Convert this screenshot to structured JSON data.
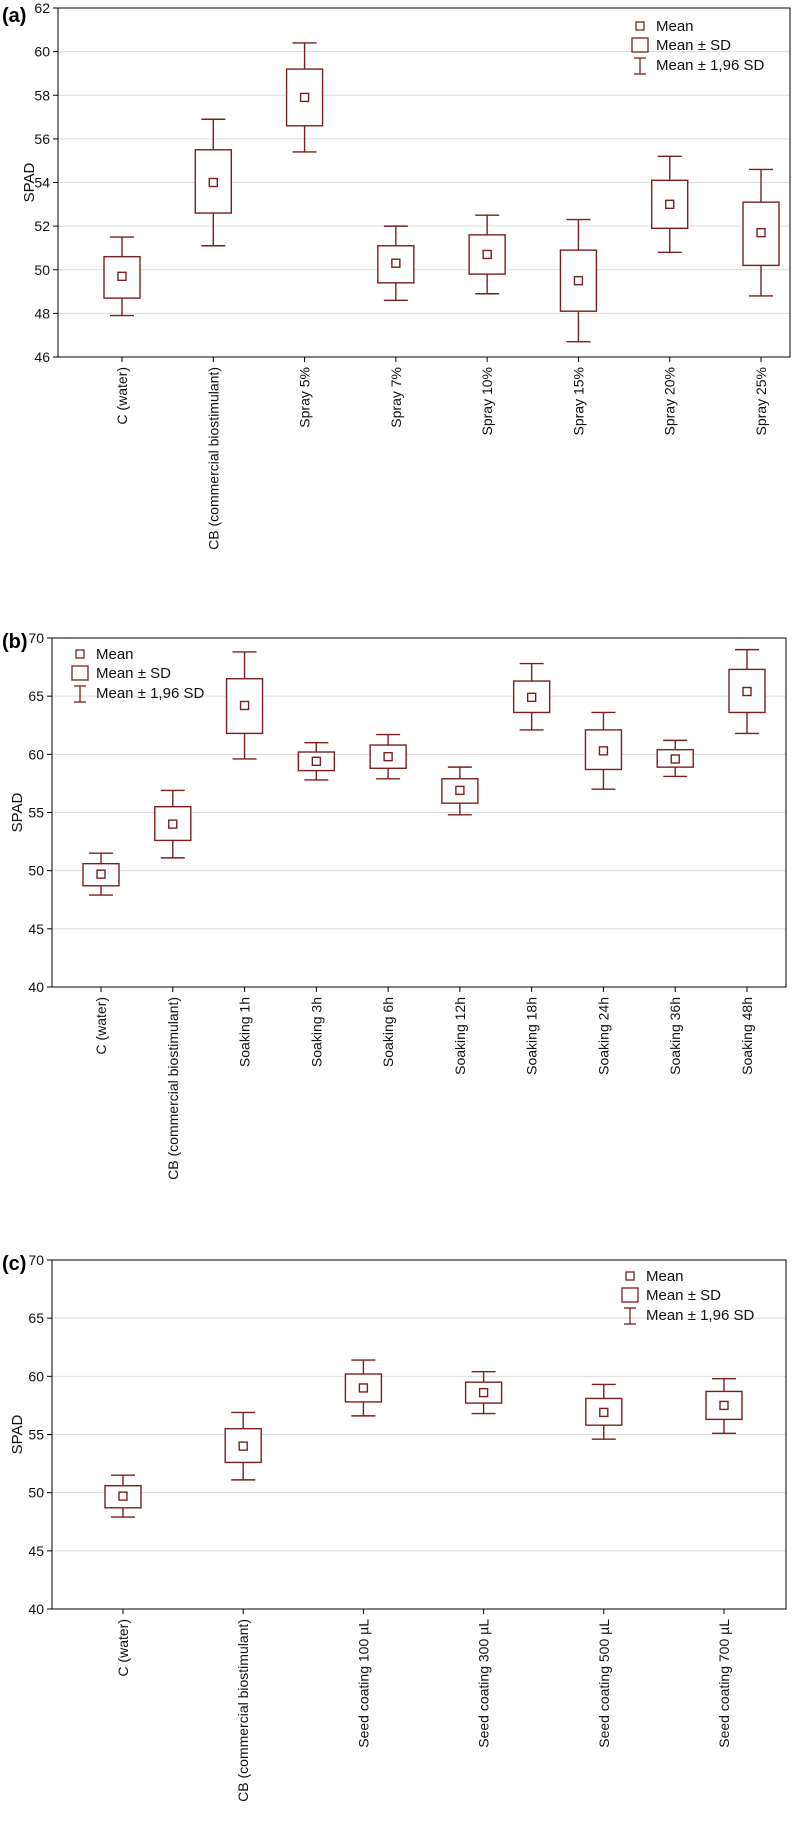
{
  "colors": {
    "box": "#7a1f1f",
    "grid": "#dcdcdc",
    "frame": "#000000"
  },
  "legend": {
    "mean": "Mean",
    "sd": "Mean ± SD",
    "ci": "Mean ± 1,96 SD"
  },
  "chart_data": [
    {
      "type": "box",
      "panel": "(a)",
      "ylabel": "SPAD",
      "ylim": [
        46,
        62
      ],
      "yticks": [
        46,
        48,
        50,
        52,
        54,
        56,
        58,
        60,
        62
      ],
      "legend_position": "top-right",
      "categories": [
        "C (water)",
        "CB (commercial biostimulant)",
        "Spray 5%",
        "Spray 7%",
        "Spray 10%",
        "Spray 15%",
        "Spray 20%",
        "Spray 25%"
      ],
      "mean": [
        49.7,
        54.0,
        57.9,
        50.3,
        50.7,
        49.5,
        53.0,
        51.7
      ],
      "sd_low": [
        48.7,
        52.6,
        56.6,
        49.4,
        49.8,
        48.1,
        51.9,
        50.2
      ],
      "sd_high": [
        50.6,
        55.5,
        59.2,
        51.1,
        51.6,
        50.9,
        54.1,
        53.1
      ],
      "ci_low": [
        47.9,
        51.1,
        55.4,
        48.6,
        48.9,
        46.7,
        50.8,
        48.8
      ],
      "ci_high": [
        51.5,
        56.9,
        60.4,
        52.0,
        52.5,
        52.3,
        55.2,
        54.6
      ]
    },
    {
      "type": "box",
      "panel": "(b)",
      "ylabel": "SPAD",
      "ylim": [
        40,
        70
      ],
      "yticks": [
        40,
        45,
        50,
        55,
        60,
        65,
        70
      ],
      "legend_position": "top-left",
      "categories": [
        "C (water)",
        "CB (commercial biostimulant)",
        "Soaking 1h",
        "Soaking 3h",
        "Soaking 6h",
        "Soaking 12h",
        "Soaking 18h",
        "Soaking 24h",
        "Soaking 36h",
        "Soaking 48h"
      ],
      "mean": [
        49.7,
        54.0,
        64.2,
        59.4,
        59.8,
        56.9,
        64.9,
        60.3,
        59.6,
        65.4
      ],
      "sd_low": [
        48.7,
        52.6,
        61.8,
        58.6,
        58.8,
        55.8,
        63.6,
        58.7,
        58.9,
        63.6
      ],
      "sd_high": [
        50.6,
        55.5,
        66.5,
        60.2,
        60.8,
        57.9,
        66.3,
        62.1,
        60.4,
        67.3
      ],
      "ci_low": [
        47.9,
        51.1,
        59.6,
        57.8,
        57.9,
        54.8,
        62.1,
        57.0,
        58.1,
        61.8
      ],
      "ci_high": [
        51.5,
        56.9,
        68.8,
        61.0,
        61.7,
        58.9,
        67.8,
        63.6,
        61.2,
        69.0
      ]
    },
    {
      "type": "box",
      "panel": "(c)",
      "ylabel": "SPAD",
      "ylim": [
        40,
        70
      ],
      "yticks": [
        40,
        45,
        50,
        55,
        60,
        65,
        70
      ],
      "legend_position": "top-right",
      "categories": [
        "C (water)",
        "CB (commercial biostimulant)",
        "Seed coating 100 µL",
        "Seed coating 300 µL",
        "Seed coating 500 µL",
        "Seed coating 700 µL"
      ],
      "mean": [
        49.7,
        54.0,
        59.0,
        58.6,
        56.9,
        57.5
      ],
      "sd_low": [
        48.7,
        52.6,
        57.8,
        57.7,
        55.8,
        56.3
      ],
      "sd_high": [
        50.6,
        55.5,
        60.2,
        59.5,
        58.1,
        58.7
      ],
      "ci_low": [
        47.9,
        51.1,
        56.6,
        56.8,
        54.6,
        55.1
      ],
      "ci_high": [
        51.5,
        56.9,
        61.4,
        60.4,
        59.3,
        59.8
      ]
    }
  ]
}
